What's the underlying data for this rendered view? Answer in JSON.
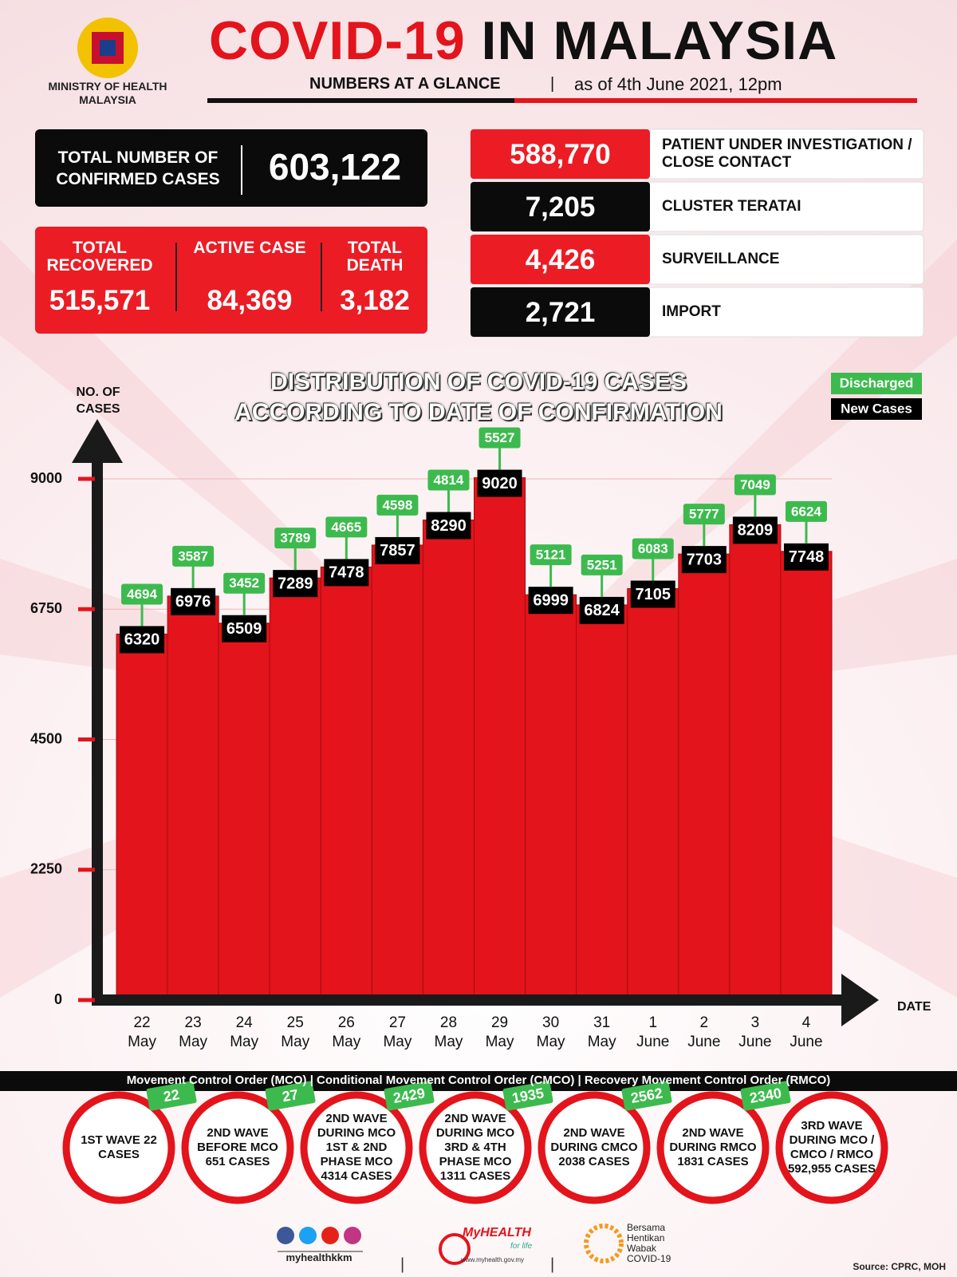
{
  "header": {
    "ministry": [
      "MINISTRY OF HEALTH",
      "MALAYSIA"
    ],
    "title_red": "COVID-19",
    "title_black": "IN MALAYSIA",
    "subtitle": "NUMBERS AT A GLANCE",
    "date": "as of 4th June 2021, 12pm"
  },
  "summary": {
    "confirmed": {
      "label": "TOTAL NUMBER OF CONFIRMED CASES",
      "value": "603,122"
    },
    "breakdown": [
      {
        "label": "TOTAL RECOVERED",
        "value": "515,571"
      },
      {
        "label": "ACTIVE CASE",
        "value": "84,369"
      },
      {
        "label": "TOTAL DEATH",
        "value": "3,182"
      }
    ]
  },
  "case_sources": [
    {
      "value": "588,770",
      "label": "PATIENT UNDER INVESTIGATION / CLOSE CONTACT"
    },
    {
      "value": "7,205",
      "label": "CLUSTER TERATAI"
    },
    {
      "value": "4,426",
      "label": "SURVEILLANCE"
    },
    {
      "value": "2,721",
      "label": "IMPORT"
    }
  ],
  "chart_data": {
    "type": "bar",
    "title": "DISTRIBUTION OF COVID-19 CASES ACCORDING TO DATE OF CONFIRMATION",
    "y_label": "NO. OF CASES",
    "x_label": "DATE",
    "categories": [
      "22 May",
      "23 May",
      "24 May",
      "25 May",
      "26 May",
      "27 May",
      "28 May",
      "29 May",
      "30 May",
      "31 May",
      "1 June",
      "2 June",
      "3 June",
      "4 June"
    ],
    "series": [
      {
        "name": "Discharged",
        "color": "#3dba4e",
        "values": [
          4694,
          3587,
          3452,
          3789,
          4665,
          4598,
          4814,
          5527,
          5121,
          5251,
          6083,
          5777,
          7049,
          6624
        ]
      },
      {
        "name": "New Cases",
        "color": "#000000",
        "values": [
          6320,
          6976,
          6509,
          7289,
          7478,
          7857,
          8290,
          9020,
          6999,
          6824,
          7105,
          7703,
          8209,
          7748
        ]
      }
    ],
    "bar_color": "#e3141b",
    "ylim": [
      0,
      9000
    ],
    "yticks": [
      0,
      2250,
      4500,
      6750,
      9000
    ],
    "grid": true
  },
  "waves": {
    "banner": "Movement Control Order (MCO) | Conditional Movement Control Order (CMCO) | Recovery Movement Control Order (RMCO)",
    "items": [
      {
        "text": "1ST WAVE 22 CASES",
        "badge": "22"
      },
      {
        "text": "2ND WAVE BEFORE MCO 651 CASES",
        "badge": "27"
      },
      {
        "text": "2ND WAVE DURING MCO 1ST & 2ND PHASE MCO 4314 CASES",
        "badge": "2429"
      },
      {
        "text": "2ND WAVE DURING MCO 3RD & 4TH PHASE MCO 1311 CASES",
        "badge": "1935"
      },
      {
        "text": "2ND WAVE DURING CMCO 2038 CASES",
        "badge": "2562"
      },
      {
        "text": "2ND WAVE DURING RMCO 1831 CASES",
        "badge": "2340"
      },
      {
        "text": "3RD WAVE DURING MCO / CMCO / RMCO 592,955 CASES"
      }
    ]
  },
  "footer": {
    "social": "myhealthkkm",
    "brand": "MyHEALTH",
    "tagline": "for life",
    "url": "www.myhealth.gov.my",
    "campaign": "Bersama Hentikan Wabak COVID-19",
    "source": "Source: CPRC, MOH"
  }
}
